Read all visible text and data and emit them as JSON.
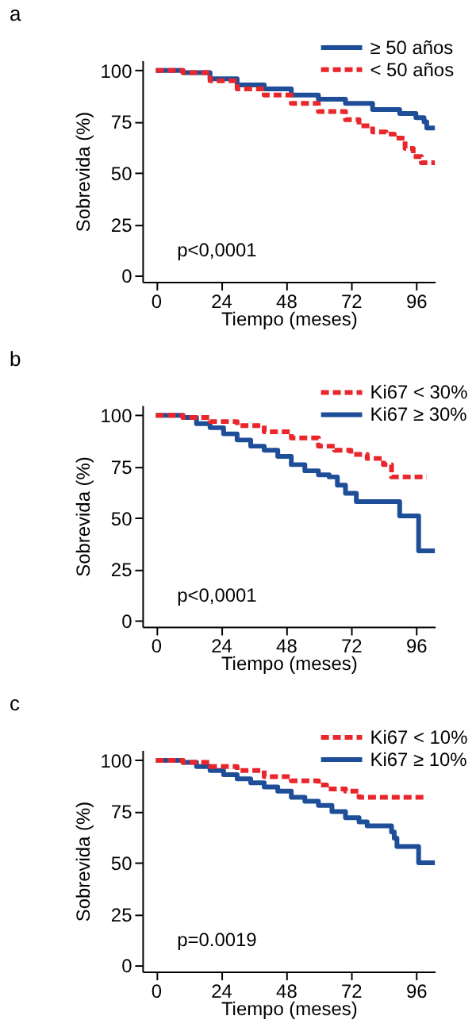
{
  "chart_data": [
    {
      "type": "step",
      "title": "a",
      "xlabel": "Tiempo (meses)",
      "ylabel": "Sobrevida (%)",
      "annotations": [
        "p<0,0001"
      ],
      "xlim": [
        -5,
        103
      ],
      "ylim": [
        -3,
        105
      ],
      "xticks": [
        0,
        24,
        48,
        72,
        96
      ],
      "yticks": [
        0,
        25,
        50,
        75,
        100
      ],
      "grid": false,
      "legend": "top right",
      "series": [
        {
          "name": "≥ 50 años",
          "color": "#1f4e99",
          "line_style": "solid",
          "x": [
            0,
            10,
            20,
            30,
            40,
            50,
            60,
            70,
            80,
            90,
            96,
            99,
            100,
            103
          ],
          "values": [
            100,
            99,
            96,
            93,
            91,
            88,
            86,
            84,
            81,
            79,
            77,
            75,
            72,
            72
          ]
        },
        {
          "name": "< 50 años",
          "color": "#e8262b",
          "line_style": "dashed",
          "x": [
            0,
            10,
            20,
            30,
            40,
            50,
            60,
            70,
            75,
            80,
            85,
            88,
            92,
            95,
            98,
            103
          ],
          "values": [
            100,
            99,
            95,
            91,
            88,
            84,
            80,
            76,
            73,
            70,
            69,
            67,
            62,
            58,
            55,
            55
          ]
        }
      ]
    },
    {
      "type": "step",
      "title": "b",
      "xlabel": "Tiempo (meses)",
      "ylabel": "Sobrevida (%)",
      "annotations": [
        "p<0,0001"
      ],
      "xlim": [
        -5,
        103
      ],
      "ylim": [
        -3,
        105
      ],
      "xticks": [
        0,
        24,
        48,
        72,
        96
      ],
      "yticks": [
        0,
        25,
        50,
        75,
        100
      ],
      "grid": false,
      "legend": "top right",
      "series": [
        {
          "name": "Ki67 < 30%",
          "color": "#e8262b",
          "line_style": "dashed",
          "x": [
            0,
            10,
            20,
            30,
            40,
            50,
            60,
            66,
            72,
            78,
            84,
            87,
            100
          ],
          "values": [
            100,
            99,
            97,
            95,
            92,
            89,
            85,
            83,
            81,
            79,
            76,
            70,
            70
          ]
        },
        {
          "name": "Ki67 ≥ 30%",
          "color": "#1f4e99",
          "line_style": "solid",
          "x": [
            0,
            10,
            15,
            20,
            25,
            30,
            35,
            40,
            45,
            50,
            55,
            60,
            64,
            67,
            70,
            74,
            90,
            97,
            103
          ],
          "values": [
            100,
            99,
            96,
            94,
            91,
            88,
            85,
            83,
            80,
            76,
            73,
            71,
            70,
            66,
            62,
            58,
            51,
            34,
            34
          ]
        }
      ]
    },
    {
      "type": "step",
      "title": "c",
      "xlabel": "Tiempo (meses)",
      "ylabel": "Sobrevida (%)",
      "annotations": [
        "p=0.0019"
      ],
      "xlim": [
        -5,
        103
      ],
      "ylim": [
        -3,
        105
      ],
      "xticks": [
        0,
        24,
        48,
        72,
        96
      ],
      "yticks": [
        0,
        25,
        50,
        75,
        100
      ],
      "grid": false,
      "legend": "top right",
      "series": [
        {
          "name": "Ki67 < 10%",
          "color": "#e8262b",
          "line_style": "dashed",
          "x": [
            0,
            10,
            20,
            30,
            40,
            50,
            60,
            63,
            70,
            75,
            100
          ],
          "values": [
            100,
            99,
            97,
            95,
            92,
            90,
            88,
            86,
            85,
            82,
            82
          ]
        },
        {
          "name": "Ki67 ≥ 10%",
          "color": "#1f4e99",
          "line_style": "solid",
          "x": [
            0,
            10,
            15,
            20,
            25,
            30,
            35,
            40,
            45,
            50,
            55,
            60,
            65,
            70,
            75,
            78,
            85,
            87,
            88,
            89,
            97,
            103
          ],
          "values": [
            100,
            99,
            97,
            95,
            93,
            91,
            89,
            87,
            85,
            82,
            80,
            78,
            75,
            72,
            70,
            68,
            68,
            65,
            62,
            58,
            50,
            50
          ]
        }
      ]
    }
  ]
}
